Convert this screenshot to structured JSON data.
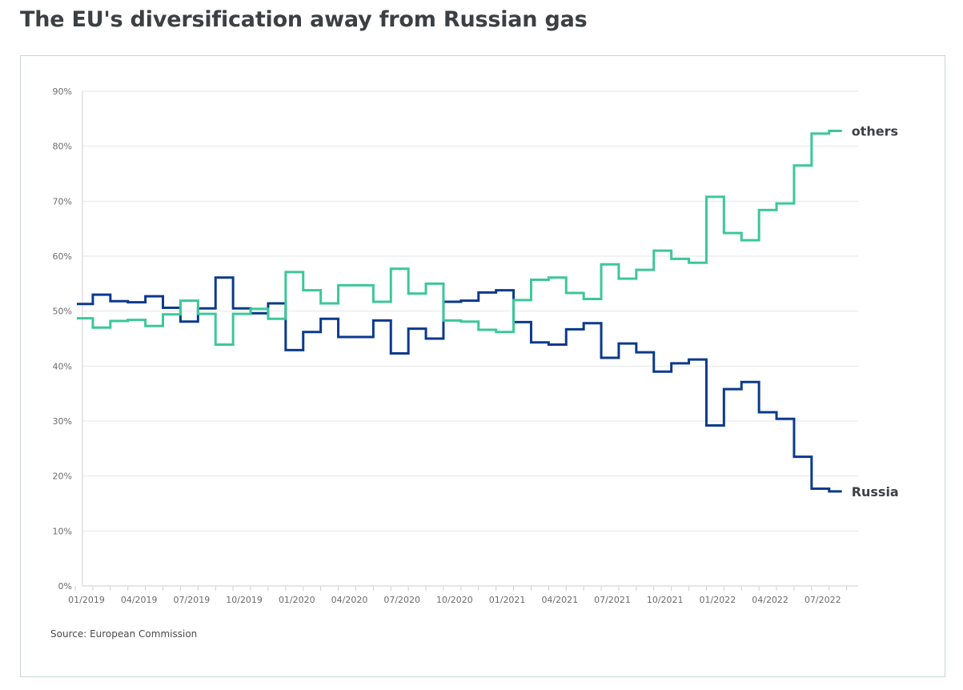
{
  "page": {
    "title": "The EU's diversification away from Russian gas"
  },
  "chart_data": {
    "type": "line",
    "step": true,
    "title": "The EU's diversification away from Russian gas",
    "xlabel": "",
    "ylabel": "",
    "ylim": [
      0,
      90
    ],
    "y_ticks": [
      "0%",
      "10%",
      "20%",
      "30%",
      "40%",
      "50%",
      "60%",
      "70%",
      "80%",
      "90%"
    ],
    "x_tick_labels": [
      "01/2019",
      "04/2019",
      "07/2019",
      "10/2019",
      "01/2020",
      "04/2020",
      "07/2020",
      "10/2020",
      "01/2021",
      "04/2021",
      "07/2021",
      "10/2021",
      "01/2022",
      "04/2022",
      "07/2022"
    ],
    "x": [
      "01/2019",
      "02/2019",
      "03/2019",
      "04/2019",
      "05/2019",
      "06/2019",
      "07/2019",
      "08/2019",
      "09/2019",
      "10/2019",
      "11/2019",
      "12/2019",
      "01/2020",
      "02/2020",
      "03/2020",
      "04/2020",
      "05/2020",
      "06/2020",
      "07/2020",
      "08/2020",
      "09/2020",
      "10/2020",
      "11/2020",
      "12/2020",
      "01/2021",
      "02/2021",
      "03/2021",
      "04/2021",
      "05/2021",
      "06/2021",
      "07/2021",
      "08/2021",
      "09/2021",
      "10/2021",
      "11/2021",
      "12/2021",
      "01/2022",
      "02/2022",
      "03/2022",
      "04/2022",
      "05/2022",
      "06/2022",
      "07/2022",
      "08/2022"
    ],
    "grid": true,
    "legend": "none",
    "series": [
      {
        "name": "Russia",
        "color": "#0b3a8c",
        "values": [
          51.3,
          53.0,
          51.8,
          51.6,
          52.7,
          50.6,
          48.1,
          50.5,
          56.1,
          50.5,
          49.6,
          51.4,
          42.9,
          46.2,
          48.6,
          45.3,
          45.3,
          48.3,
          42.3,
          46.8,
          45.0,
          51.7,
          51.9,
          53.4,
          53.8,
          48.0,
          44.3,
          43.9,
          46.7,
          47.8,
          41.5,
          44.1,
          42.5,
          39.0,
          40.5,
          41.2,
          29.2,
          35.8,
          37.1,
          31.6,
          30.4,
          23.5,
          17.7,
          17.2
        ]
      },
      {
        "name": "others",
        "color": "#3cc79a",
        "values": [
          48.7,
          47.0,
          48.2,
          48.4,
          47.3,
          49.4,
          51.9,
          49.5,
          43.9,
          49.5,
          50.4,
          48.6,
          57.1,
          53.8,
          51.4,
          54.7,
          54.7,
          51.7,
          57.7,
          53.2,
          55.0,
          48.3,
          48.1,
          46.6,
          46.2,
          52.0,
          55.7,
          56.1,
          53.3,
          52.2,
          58.5,
          55.9,
          57.5,
          61.0,
          59.5,
          58.8,
          70.8,
          64.2,
          62.9,
          68.4,
          69.6,
          76.5,
          82.3,
          82.8
        ]
      }
    ],
    "source": "Source: European Commission"
  }
}
